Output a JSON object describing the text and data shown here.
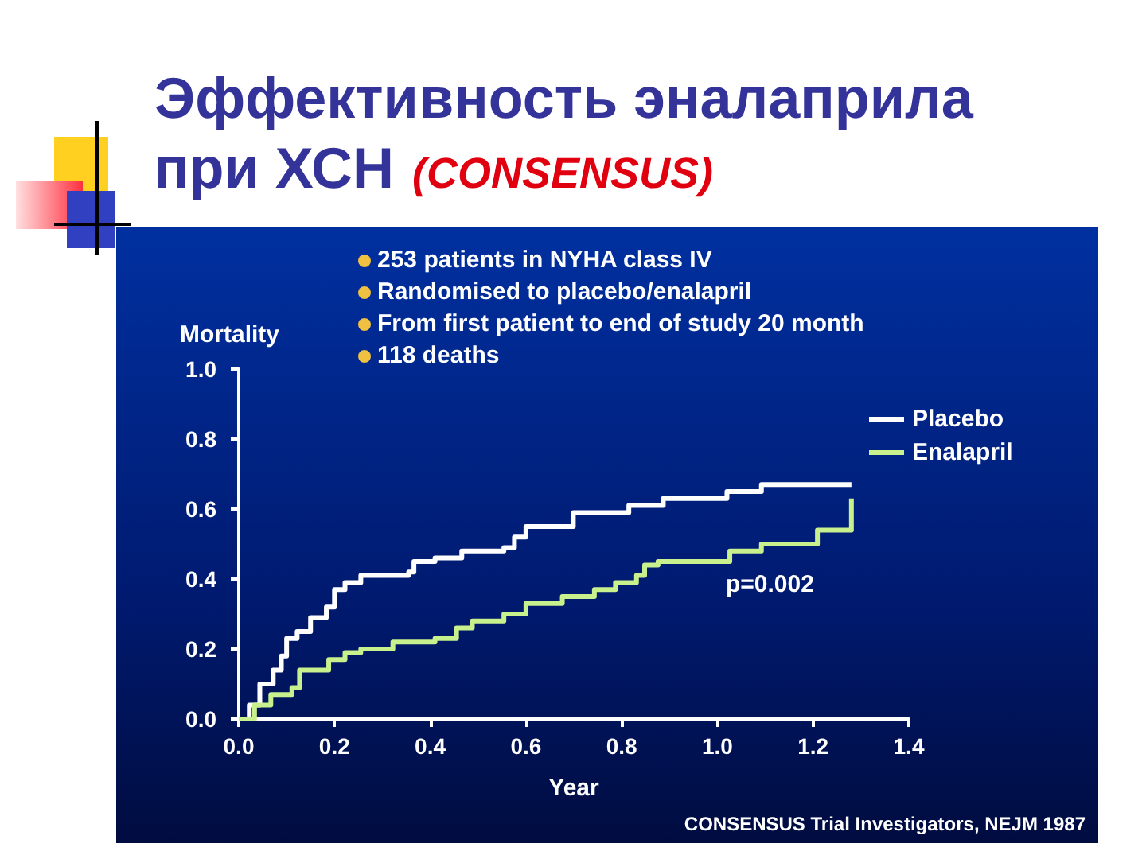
{
  "chart_data": {
    "type": "step",
    "title": "Эффективность эналаприла при ХСН",
    "subtitle": "(CONSENSUS)",
    "xlabel": "Year",
    "ylabel": "Mortality",
    "annotations": [
      "253 patients in NYHA class IV",
      "Randomised to placebo/enalapril",
      "From first patient to end of study 20 month",
      "118 deaths",
      "p=0.002",
      "CONSENSUS Trial Investigators, NEJM 1987"
    ],
    "series": [
      {
        "name": "Placebo",
        "color": "#ffffff",
        "x": [
          0,
          0.022,
          0.044,
          0.072,
          0.089,
          0.1,
          0.122,
          0.15,
          0.183,
          0.2,
          0.222,
          0.255,
          0.355,
          0.366,
          0.41,
          0.466,
          0.554,
          0.576,
          0.6,
          0.687,
          0.699,
          0.815,
          0.887,
          1.02,
          1.092,
          1.28
        ],
        "values": [
          0,
          0.04,
          0.1,
          0.14,
          0.18,
          0.23,
          0.25,
          0.29,
          0.32,
          0.37,
          0.39,
          0.41,
          0.42,
          0.45,
          0.46,
          0.48,
          0.49,
          0.52,
          0.55,
          0.55,
          0.59,
          0.61,
          0.63,
          0.65,
          0.67,
          0.67
        ]
      },
      {
        "name": "Enalapril",
        "color": "#c8f08c",
        "x": [
          0,
          0.033,
          0.067,
          0.111,
          0.127,
          0.188,
          0.222,
          0.255,
          0.322,
          0.41,
          0.455,
          0.488,
          0.554,
          0.6,
          0.676,
          0.743,
          0.787,
          0.831,
          0.848,
          0.876,
          1.026,
          1.092,
          1.209,
          1.28
        ],
        "values": [
          0,
          0.04,
          0.07,
          0.09,
          0.14,
          0.17,
          0.19,
          0.2,
          0.22,
          0.23,
          0.26,
          0.28,
          0.3,
          0.33,
          0.35,
          0.37,
          0.39,
          0.41,
          0.44,
          0.45,
          0.48,
          0.5,
          0.54,
          0.63
        ]
      }
    ],
    "xlim": [
      0,
      1.4
    ],
    "xticks": [
      {
        "value": 0,
        "label": "0.0"
      },
      {
        "value": 0.2,
        "label": "0.2"
      },
      {
        "value": 0.4,
        "label": "0.4"
      },
      {
        "value": 0.6,
        "label": "0.6"
      },
      {
        "value": 0.8,
        "label": "0.8"
      },
      {
        "value": 1,
        "label": "1.0"
      },
      {
        "value": 1.2,
        "label": "1.2"
      },
      {
        "value": 1.4,
        "label": "1.4"
      }
    ],
    "ylim": [
      0,
      1
    ],
    "yticks": [
      {
        "value": 0,
        "label": "0.0"
      },
      {
        "value": 0.2,
        "label": "0.2"
      },
      {
        "value": 0.4,
        "label": "0.4"
      },
      {
        "value": 0.6,
        "label": "0.6"
      },
      {
        "value": 0.8,
        "label": "0.8"
      },
      {
        "value": 1,
        "label": "1.0"
      }
    ],
    "grid": false,
    "legend": "top right",
    "marker": "none",
    "line_style": "solid"
  }
}
